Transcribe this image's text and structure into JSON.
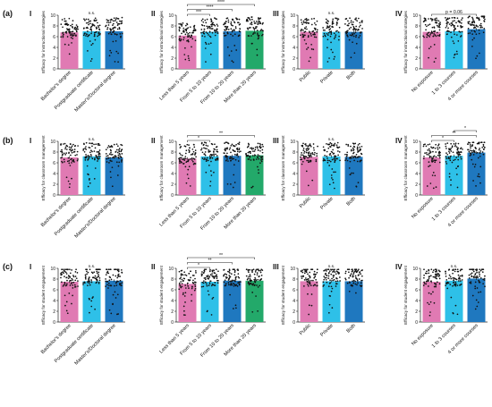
{
  "colors": {
    "pink": "#e07ab3",
    "cyan": "#2ec0e8",
    "blue": "#1f78bf",
    "green": "#23a96a"
  },
  "rows": [
    {
      "label": "(a)",
      "ylabel": "Efficacy for instructional strategies"
    },
    {
      "label": "(b)",
      "ylabel": "Efficacy for classroom management"
    },
    {
      "label": "(c)",
      "ylabel": "Efficacy for student engagement"
    }
  ],
  "chart_data": [
    {
      "id": "a-I",
      "type": "bar",
      "panel_label": "I",
      "ylabel": "Efficacy for instructional strategies",
      "ylim": [
        0,
        10
      ],
      "yticks": [
        0,
        2,
        4,
        6,
        8,
        10
      ],
      "categories": [
        "Bachelor's degree",
        "Postgraduate certificate",
        "Master's/Doctoral degree"
      ],
      "values": [
        6.8,
        7.0,
        7.0
      ],
      "colors": [
        "pink",
        "cyan",
        "blue"
      ],
      "annotations": [
        {
          "text": "n.s.",
          "over": 1
        }
      ]
    },
    {
      "id": "a-II",
      "type": "bar",
      "panel_label": "II",
      "ylabel": "Efficacy for instructional strategies",
      "ylim": [
        0,
        10
      ],
      "yticks": [
        0,
        2,
        4,
        6,
        8,
        10
      ],
      "categories": [
        "Less than 5 years",
        "From 5 to 10 years",
        "From 10 to 20 years",
        "More than 20 years"
      ],
      "values": [
        6.2,
        6.9,
        7.0,
        7.1
      ],
      "colors": [
        "pink",
        "cyan",
        "blue",
        "green"
      ],
      "annotations": [
        {
          "text": "***",
          "from": 0,
          "to": 1
        },
        {
          "text": "****",
          "from": 0,
          "to": 2
        },
        {
          "text": "****",
          "from": 0,
          "to": 3
        }
      ]
    },
    {
      "id": "a-III",
      "type": "bar",
      "panel_label": "III",
      "ylabel": "Efficacy for instructional strategies",
      "ylim": [
        0,
        10
      ],
      "yticks": [
        0,
        2,
        4,
        6,
        8,
        10
      ],
      "categories": [
        "Public",
        "Private",
        "Both"
      ],
      "values": [
        6.9,
        6.9,
        6.9
      ],
      "colors": [
        "pink",
        "cyan",
        "blue"
      ],
      "annotations": [
        {
          "text": "n.s.",
          "over": 1
        }
      ]
    },
    {
      "id": "a-IV",
      "type": "bar",
      "panel_label": "IV",
      "ylabel": "Efficacy for instructional strategies",
      "ylim": [
        0,
        10
      ],
      "yticks": [
        0,
        2,
        4,
        6,
        8,
        10
      ],
      "categories": [
        "No exposure",
        "1 to 3 courses",
        "4 or more courses"
      ],
      "values": [
        6.9,
        7.0,
        7.4
      ],
      "colors": [
        "pink",
        "cyan",
        "blue"
      ],
      "annotations": [
        {
          "text": "p = 0.06",
          "from": 0,
          "to": 2
        }
      ]
    },
    {
      "id": "b-I",
      "type": "bar",
      "panel_label": "I",
      "ylabel": "Efficacy for classroom management",
      "ylim": [
        0,
        10
      ],
      "yticks": [
        0,
        2,
        4,
        6,
        8,
        10
      ],
      "categories": [
        "Bachelor's degree",
        "Postgraduate certificate",
        "Master's/Doctoral degree"
      ],
      "values": [
        7.0,
        7.2,
        7.0
      ],
      "colors": [
        "pink",
        "cyan",
        "blue"
      ],
      "annotations": [
        {
          "text": "n.s.",
          "over": 1
        }
      ]
    },
    {
      "id": "b-II",
      "type": "bar",
      "panel_label": "II",
      "ylabel": "Efficacy for classroom management",
      "ylim": [
        0,
        10
      ],
      "yticks": [
        0,
        2,
        4,
        6,
        8,
        10
      ],
      "categories": [
        "Less than 5 years",
        "From 5 to 10 years",
        "From 10 to 20 years",
        "More than 20 years"
      ],
      "values": [
        6.8,
        7.2,
        7.3,
        7.4
      ],
      "colors": [
        "pink",
        "cyan",
        "blue",
        "green"
      ],
      "annotations": [
        {
          "text": "*",
          "from": 0,
          "to": 1
        },
        {
          "text": "**",
          "from": 0,
          "to": 3
        }
      ]
    },
    {
      "id": "b-III",
      "type": "bar",
      "panel_label": "III",
      "ylabel": "Efficacy for classroom management",
      "ylim": [
        0,
        10
      ],
      "yticks": [
        0,
        2,
        4,
        6,
        8,
        10
      ],
      "categories": [
        "Public",
        "Private",
        "Both"
      ],
      "values": [
        7.1,
        7.2,
        7.1
      ],
      "colors": [
        "pink",
        "cyan",
        "blue"
      ],
      "annotations": [
        {
          "text": "n.s.",
          "over": 1
        }
      ]
    },
    {
      "id": "b-IV",
      "type": "bar",
      "panel_label": "IV",
      "ylabel": "Efficacy for classroom management",
      "ylim": [
        0,
        10
      ],
      "yticks": [
        0,
        2,
        4,
        6,
        8,
        10
      ],
      "categories": [
        "No exposure",
        "1 to 3 courses",
        "4 or more courses"
      ],
      "values": [
        7.0,
        7.3,
        7.9
      ],
      "colors": [
        "pink",
        "cyan",
        "blue"
      ],
      "annotations": [
        {
          "text": "*",
          "from": 0,
          "to": 1
        },
        {
          "text": "**",
          "from": 0,
          "to": 2
        },
        {
          "text": "*",
          "from": 1,
          "to": 2
        }
      ]
    },
    {
      "id": "c-I",
      "type": "bar",
      "panel_label": "I",
      "ylabel": "Efficacy for student engagement",
      "ylim": [
        0,
        10
      ],
      "yticks": [
        0,
        2,
        4,
        6,
        8,
        10
      ],
      "categories": [
        "Bachelor's degree",
        "Postgraduate certificate",
        "Master's/Doctoral degree"
      ],
      "values": [
        7.5,
        7.6,
        7.7
      ],
      "colors": [
        "pink",
        "cyan",
        "blue"
      ],
      "annotations": [
        {
          "text": "n.s.",
          "over": 1
        }
      ]
    },
    {
      "id": "c-II",
      "type": "bar",
      "panel_label": "II",
      "ylabel": "Efficacy for student engagement",
      "ylim": [
        0,
        10
      ],
      "yticks": [
        0,
        2,
        4,
        6,
        8,
        10
      ],
      "categories": [
        "Less than 5 years",
        "From 5 to 10 years",
        "From 10 to 20 years",
        "More than 20 years"
      ],
      "values": [
        7.1,
        7.5,
        7.7,
        7.7
      ],
      "colors": [
        "pink",
        "cyan",
        "blue",
        "green"
      ],
      "annotations": [
        {
          "text": "*",
          "from": 0,
          "to": 1
        },
        {
          "text": "**",
          "from": 0,
          "to": 2
        },
        {
          "text": "**",
          "from": 0,
          "to": 3
        }
      ]
    },
    {
      "id": "c-III",
      "type": "bar",
      "panel_label": "III",
      "ylabel": "Efficacy for student engagement",
      "ylim": [
        0,
        10
      ],
      "yticks": [
        0,
        2,
        4,
        6,
        8,
        10
      ],
      "categories": [
        "Public",
        "Private",
        "Both"
      ],
      "values": [
        7.6,
        7.6,
        7.6
      ],
      "colors": [
        "pink",
        "cyan",
        "blue"
      ],
      "annotations": [
        {
          "text": "n.s.",
          "over": 1
        }
      ]
    },
    {
      "id": "c-IV",
      "type": "bar",
      "panel_label": "IV",
      "ylabel": "Efficacy for student engagement",
      "ylim": [
        0,
        10
      ],
      "yticks": [
        0,
        2,
        4,
        6,
        8,
        10
      ],
      "categories": [
        "No exposure",
        "1 to 3 courses",
        "4 or more courses"
      ],
      "values": [
        7.5,
        7.7,
        8.1
      ],
      "colors": [
        "pink",
        "cyan",
        "blue"
      ],
      "annotations": [
        {
          "text": "n.s.",
          "over": 1
        }
      ]
    }
  ]
}
